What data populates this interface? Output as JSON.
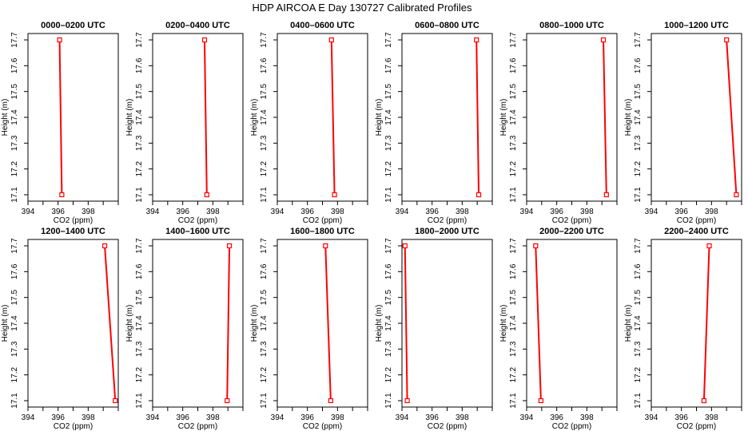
{
  "title": "HDP AIRCOA E  Day 130727  Calibrated Profiles",
  "colors": {
    "line": "#ff0000",
    "marker": "#ff0000",
    "axis": "#000000",
    "background": "#ffffff"
  },
  "chart_data": [
    {
      "type": "line",
      "title": "0000–0200 UTC",
      "xlabel": "CO2 (ppm)",
      "ylabel": "Height (m)",
      "xlim": [
        394,
        400
      ],
      "ylim": [
        17.1,
        17.7
      ],
      "xticks": [
        394,
        396,
        398
      ],
      "yticks": [
        17.1,
        17.2,
        17.3,
        17.4,
        17.5,
        17.6,
        17.7
      ],
      "grid": false,
      "series": [
        {
          "x": [
            396.25,
            396.1
          ],
          "y": [
            17.1,
            17.7
          ]
        }
      ]
    },
    {
      "type": "line",
      "title": "0200–0400 UTC",
      "xlabel": "CO2 (ppm)",
      "ylabel": "Height (m)",
      "xlim": [
        394,
        400
      ],
      "ylim": [
        17.1,
        17.7
      ],
      "xticks": [
        394,
        396,
        398
      ],
      "yticks": [
        17.1,
        17.2,
        17.3,
        17.4,
        17.5,
        17.6,
        17.7
      ],
      "grid": false,
      "series": [
        {
          "x": [
            397.6,
            397.45
          ],
          "y": [
            17.1,
            17.7
          ]
        }
      ]
    },
    {
      "type": "line",
      "title": "0400–0600 UTC",
      "xlabel": "CO2 (ppm)",
      "ylabel": "Height (m)",
      "xlim": [
        394,
        400
      ],
      "ylim": [
        17.1,
        17.7
      ],
      "xticks": [
        394,
        396,
        398
      ],
      "yticks": [
        17.1,
        17.2,
        17.3,
        17.4,
        17.5,
        17.6,
        17.7
      ],
      "grid": false,
      "series": [
        {
          "x": [
            397.8,
            397.6
          ],
          "y": [
            17.1,
            17.7
          ]
        }
      ]
    },
    {
      "type": "line",
      "title": "0600–0800 UTC",
      "xlabel": "CO2 (ppm)",
      "ylabel": "Height (m)",
      "xlim": [
        394,
        400
      ],
      "ylim": [
        17.1,
        17.7
      ],
      "xticks": [
        394,
        396,
        398
      ],
      "yticks": [
        17.1,
        17.2,
        17.3,
        17.4,
        17.5,
        17.6,
        17.7
      ],
      "grid": false,
      "series": [
        {
          "x": [
            399.1,
            398.95
          ],
          "y": [
            17.1,
            17.7
          ]
        }
      ]
    },
    {
      "type": "line",
      "title": "0800–1000 UTC",
      "xlabel": "CO2 (ppm)",
      "ylabel": "Height (m)",
      "xlim": [
        394,
        400
      ],
      "ylim": [
        17.1,
        17.7
      ],
      "xticks": [
        394,
        396,
        398
      ],
      "yticks": [
        17.1,
        17.2,
        17.3,
        17.4,
        17.5,
        17.6,
        17.7
      ],
      "grid": false,
      "series": [
        {
          "x": [
            399.3,
            399.1
          ],
          "y": [
            17.1,
            17.7
          ]
        }
      ]
    },
    {
      "type": "line",
      "title": "1000–1200 UTC",
      "xlabel": "CO2 (ppm)",
      "ylabel": "Height (m)",
      "xlim": [
        394,
        400
      ],
      "ylim": [
        17.1,
        17.7
      ],
      "xticks": [
        394,
        396,
        398
      ],
      "yticks": [
        17.1,
        17.2,
        17.3,
        17.4,
        17.5,
        17.6,
        17.7
      ],
      "grid": false,
      "series": [
        {
          "x": [
            399.65,
            399.0
          ],
          "y": [
            17.1,
            17.7
          ]
        }
      ]
    },
    {
      "type": "line",
      "title": "1200–1400 UTC",
      "xlabel": "CO2 (ppm)",
      "ylabel": "Height (m)",
      "xlim": [
        394,
        400
      ],
      "ylim": [
        17.1,
        17.7
      ],
      "xticks": [
        394,
        396,
        398
      ],
      "yticks": [
        17.1,
        17.2,
        17.3,
        17.4,
        17.5,
        17.6,
        17.7
      ],
      "grid": false,
      "series": [
        {
          "x": [
            399.8,
            399.1
          ],
          "y": [
            17.1,
            17.7
          ]
        }
      ]
    },
    {
      "type": "line",
      "title": "1400–1600 UTC",
      "xlabel": "CO2 (ppm)",
      "ylabel": "Height (m)",
      "xlim": [
        394,
        400
      ],
      "ylim": [
        17.1,
        17.7
      ],
      "xticks": [
        394,
        396,
        398
      ],
      "yticks": [
        17.1,
        17.2,
        17.3,
        17.4,
        17.5,
        17.6,
        17.7
      ],
      "grid": false,
      "series": [
        {
          "x": [
            398.95,
            399.1
          ],
          "y": [
            17.1,
            17.7
          ]
        }
      ]
    },
    {
      "type": "line",
      "title": "1600–1800 UTC",
      "xlabel": "CO2 (ppm)",
      "ylabel": "Height (m)",
      "xlim": [
        394,
        400
      ],
      "ylim": [
        17.1,
        17.7
      ],
      "xticks": [
        394,
        396,
        398
      ],
      "yticks": [
        17.1,
        17.2,
        17.3,
        17.4,
        17.5,
        17.6,
        17.7
      ],
      "grid": false,
      "series": [
        {
          "x": [
            397.55,
            397.2
          ],
          "y": [
            17.1,
            17.7
          ]
        }
      ]
    },
    {
      "type": "line",
      "title": "1800–2000 UTC",
      "xlabel": "CO2 (ppm)",
      "ylabel": "Height (m)",
      "xlim": [
        394,
        400
      ],
      "ylim": [
        17.1,
        17.7
      ],
      "xticks": [
        394,
        396,
        398
      ],
      "yticks": [
        17.1,
        17.2,
        17.3,
        17.4,
        17.5,
        17.6,
        17.7
      ],
      "grid": false,
      "series": [
        {
          "x": [
            394.35,
            394.2
          ],
          "y": [
            17.1,
            17.7
          ]
        }
      ]
    },
    {
      "type": "line",
      "title": "2000–2200 UTC",
      "xlabel": "CO2 (ppm)",
      "ylabel": "Height (m)",
      "xlim": [
        394,
        400
      ],
      "ylim": [
        17.1,
        17.7
      ],
      "xticks": [
        394,
        396,
        398
      ],
      "yticks": [
        17.1,
        17.2,
        17.3,
        17.4,
        17.5,
        17.6,
        17.7
      ],
      "grid": false,
      "series": [
        {
          "x": [
            394.95,
            394.6
          ],
          "y": [
            17.1,
            17.7
          ]
        }
      ]
    },
    {
      "type": "line",
      "title": "2200–2400 UTC",
      "xlabel": "CO2 (ppm)",
      "ylabel": "Height (m)",
      "xlim": [
        394,
        400
      ],
      "ylim": [
        17.1,
        17.7
      ],
      "xticks": [
        394,
        396,
        398
      ],
      "yticks": [
        17.1,
        17.2,
        17.3,
        17.4,
        17.5,
        17.6,
        17.7
      ],
      "grid": false,
      "series": [
        {
          "x": [
            397.5,
            397.85
          ],
          "y": [
            17.1,
            17.7
          ]
        }
      ]
    }
  ]
}
